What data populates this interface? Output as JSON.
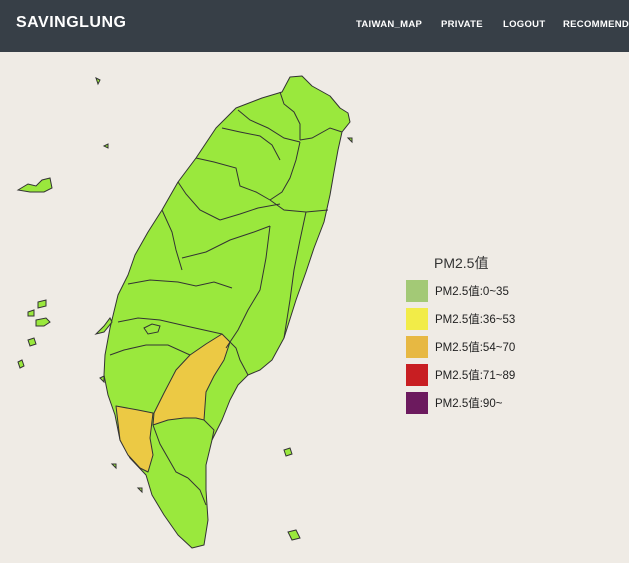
{
  "app": {
    "brand": "SAVINGLUNG"
  },
  "nav": [
    {
      "label": "TAIWAN_MAP"
    },
    {
      "label": "PRIVATE"
    },
    {
      "label": "LOGOUT"
    },
    {
      "label": "RECOMMEND"
    }
  ],
  "legend": {
    "title": "PM2.5值",
    "items": [
      {
        "label": "PM2.5值:0~35",
        "color": "#a3c976"
      },
      {
        "label": "PM2.5值:36~53",
        "color": "#f2ec48"
      },
      {
        "label": "PM2.5值:54~70",
        "color": "#e7b842"
      },
      {
        "label": "PM2.5值:71~89",
        "color": "#c81e22"
      },
      {
        "label": "PM2.5值:90~",
        "color": "#6c1a5e"
      }
    ]
  },
  "map": {
    "default_fill": "#9ae83d",
    "highlight_fill": "#ecc944",
    "highlighted_regions": [
      "kaohsiung",
      "tainan"
    ]
  }
}
